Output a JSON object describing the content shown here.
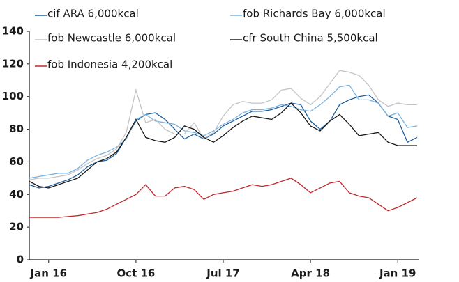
{
  "chart_data": {
    "type": "line",
    "categories": [
      null,
      null,
      "Jan 16",
      null,
      null,
      null,
      null,
      null,
      null,
      null,
      null,
      "Oct 16",
      null,
      null,
      null,
      null,
      null,
      null,
      null,
      null,
      "Jul 17",
      null,
      null,
      null,
      null,
      null,
      null,
      null,
      null,
      "Apr 18",
      null,
      null,
      null,
      null,
      null,
      null,
      null,
      null,
      "Jan 19",
      null,
      null
    ],
    "ylim": [
      0,
      140
    ],
    "yticks": [
      0,
      20,
      40,
      60,
      80,
      100,
      120,
      140
    ],
    "grid": false,
    "series": [
      {
        "name": "cif ARA 6,000kcal",
        "color": "#1f5fa0",
        "values": [
          46,
          44,
          45,
          47,
          49,
          52,
          57,
          60,
          61,
          65,
          75,
          85,
          89,
          90,
          86,
          80,
          74,
          77,
          74,
          77,
          82,
          85,
          88,
          91,
          91,
          92,
          94,
          96,
          95,
          85,
          80,
          85,
          95,
          98,
          100,
          101,
          96,
          88,
          86,
          72,
          75
        ]
      },
      {
        "name": "fob Richards Bay 6,000kcal",
        "color": "#7ab3e0",
        "values": [
          50,
          51,
          52,
          53,
          53,
          56,
          61,
          64,
          66,
          69,
          74,
          86,
          89,
          85,
          84,
          83,
          79,
          78,
          76,
          79,
          83,
          86,
          90,
          92,
          92,
          93,
          95,
          94,
          92,
          91,
          95,
          100,
          106,
          107,
          98,
          98,
          96,
          88,
          90,
          81,
          82
        ]
      },
      {
        "name": "fob Newcastle 6,000kcal",
        "color": "#c4c4c4",
        "values": [
          49,
          50,
          50,
          51,
          52,
          55,
          59,
          62,
          64,
          68,
          78,
          104,
          84,
          86,
          80,
          77,
          77,
          84,
          74,
          78,
          88,
          95,
          97,
          96,
          96,
          98,
          104,
          105,
          99,
          95,
          100,
          108,
          116,
          115,
          113,
          107,
          98,
          94,
          96,
          95,
          95
        ]
      },
      {
        "name": "cfr South China 5,500kcal",
        "color": "#1a1a1a",
        "values": [
          48,
          45,
          44,
          46,
          48,
          50,
          55,
          60,
          62,
          66,
          75,
          86,
          75,
          73,
          72,
          75,
          82,
          80,
          75,
          72,
          76,
          81,
          85,
          88,
          87,
          86,
          90,
          96,
          90,
          82,
          79,
          85,
          89,
          83,
          76,
          77,
          78,
          72,
          70,
          70,
          70
        ]
      },
      {
        "name": "fob Indonesia 4,200kcal",
        "color": "#c0282d",
        "values": [
          26,
          26,
          26,
          26,
          26.5,
          27,
          28,
          29,
          31,
          34,
          37,
          40,
          46,
          39,
          39,
          44,
          45,
          43,
          37,
          40,
          41,
          42,
          44,
          46,
          45,
          46,
          48,
          50,
          46,
          41,
          44,
          47,
          48,
          41,
          39,
          38,
          34,
          30,
          32,
          35,
          38
        ]
      }
    ]
  }
}
